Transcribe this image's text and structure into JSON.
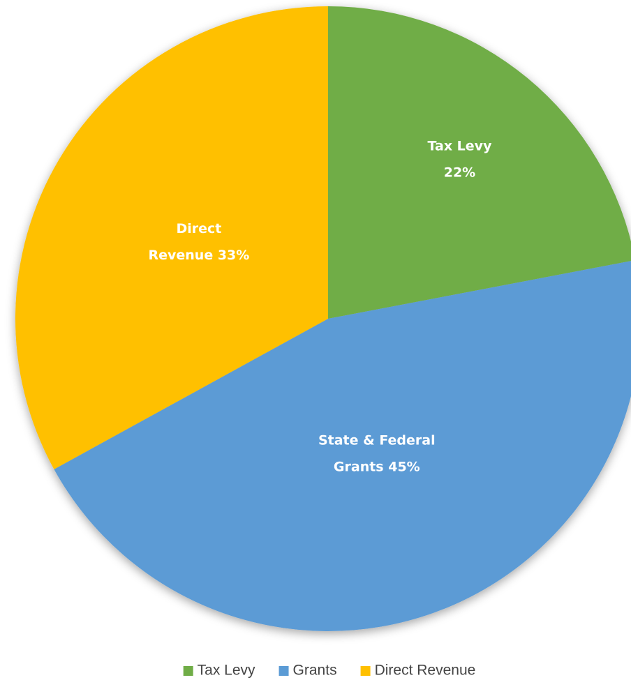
{
  "chart_data": {
    "type": "pie",
    "categories": [
      "Tax Levy",
      "Grants",
      "Direct Revenue"
    ],
    "values": [
      22,
      45,
      33
    ],
    "value_labels": [
      [
        "Tax Levy",
        "22%"
      ],
      [
        "State & Federal",
        "Grants 45%"
      ],
      [
        "Direct",
        "Revenue 33%"
      ]
    ],
    "colors": [
      "#70ad47",
      "#5b9bd5",
      "#ffc000"
    ],
    "legend": "bottom"
  }
}
